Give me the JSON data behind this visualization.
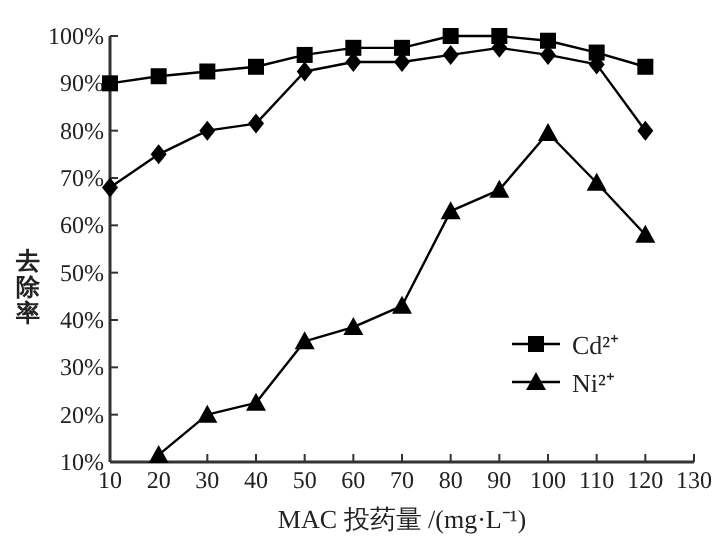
{
  "chart_data": {
    "type": "line",
    "xlabel": "MAC 投药量 /(mg·L⁻¹)",
    "ylabel": "去除率",
    "xlim": [
      10,
      130
    ],
    "xticks": [
      10,
      20,
      30,
      40,
      50,
      60,
      70,
      80,
      90,
      100,
      110,
      120,
      130
    ],
    "ylim": [
      10,
      100
    ],
    "yticks": [
      {
        "value": 10,
        "label": "10%"
      },
      {
        "value": 20,
        "label": "20%"
      },
      {
        "value": 30,
        "label": "30%"
      },
      {
        "value": 40,
        "label": "40%"
      },
      {
        "value": 50,
        "label": "50%"
      },
      {
        "value": 60,
        "label": "60%"
      },
      {
        "value": 70,
        "label": "70%"
      },
      {
        "value": 80,
        "label": "80%"
      },
      {
        "value": 90,
        "label": "90%"
      },
      {
        "value": 100,
        "label": "100%"
      }
    ],
    "legend": "bottom right",
    "grid": false,
    "series": [
      {
        "color": "#000000",
        "marker": "diamond",
        "x": [
          10,
          20,
          30,
          40,
          50,
          60,
          70,
          80,
          90,
          100,
          110,
          120
        ],
        "values": [
          68,
          75,
          80,
          81.5,
          92.5,
          94.5,
          94.5,
          96,
          97.5,
          96,
          94,
          80
        ]
      },
      {
        "name": "Cd²⁺",
        "color": "#000000",
        "marker": "square",
        "x": [
          10,
          20,
          30,
          40,
          50,
          60,
          70,
          80,
          90,
          100,
          110,
          120
        ],
        "values": [
          90,
          91.5,
          92.5,
          93.5,
          96,
          97.5,
          97.5,
          100,
          100,
          99,
          96.5,
          93.5
        ]
      },
      {
        "name": "Ni²⁺",
        "color": "#000000",
        "marker": "triangle",
        "x": [
          20,
          30,
          40,
          50,
          60,
          70,
          80,
          90,
          100,
          110,
          120
        ],
        "values": [
          11.5,
          20,
          22.5,
          35.5,
          38.5,
          43,
          63,
          67.5,
          79.5,
          69,
          58
        ]
      }
    ]
  }
}
